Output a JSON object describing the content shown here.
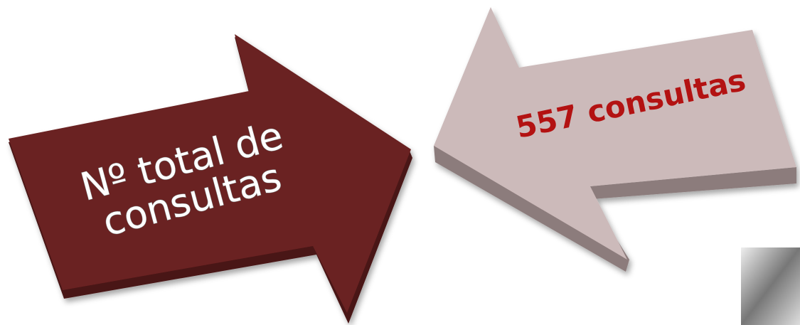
{
  "arrows": [
    {
      "lines": [
        "Nº total de",
        "consultas"
      ]
    },
    {
      "label": "557 consultas"
    }
  ]
}
